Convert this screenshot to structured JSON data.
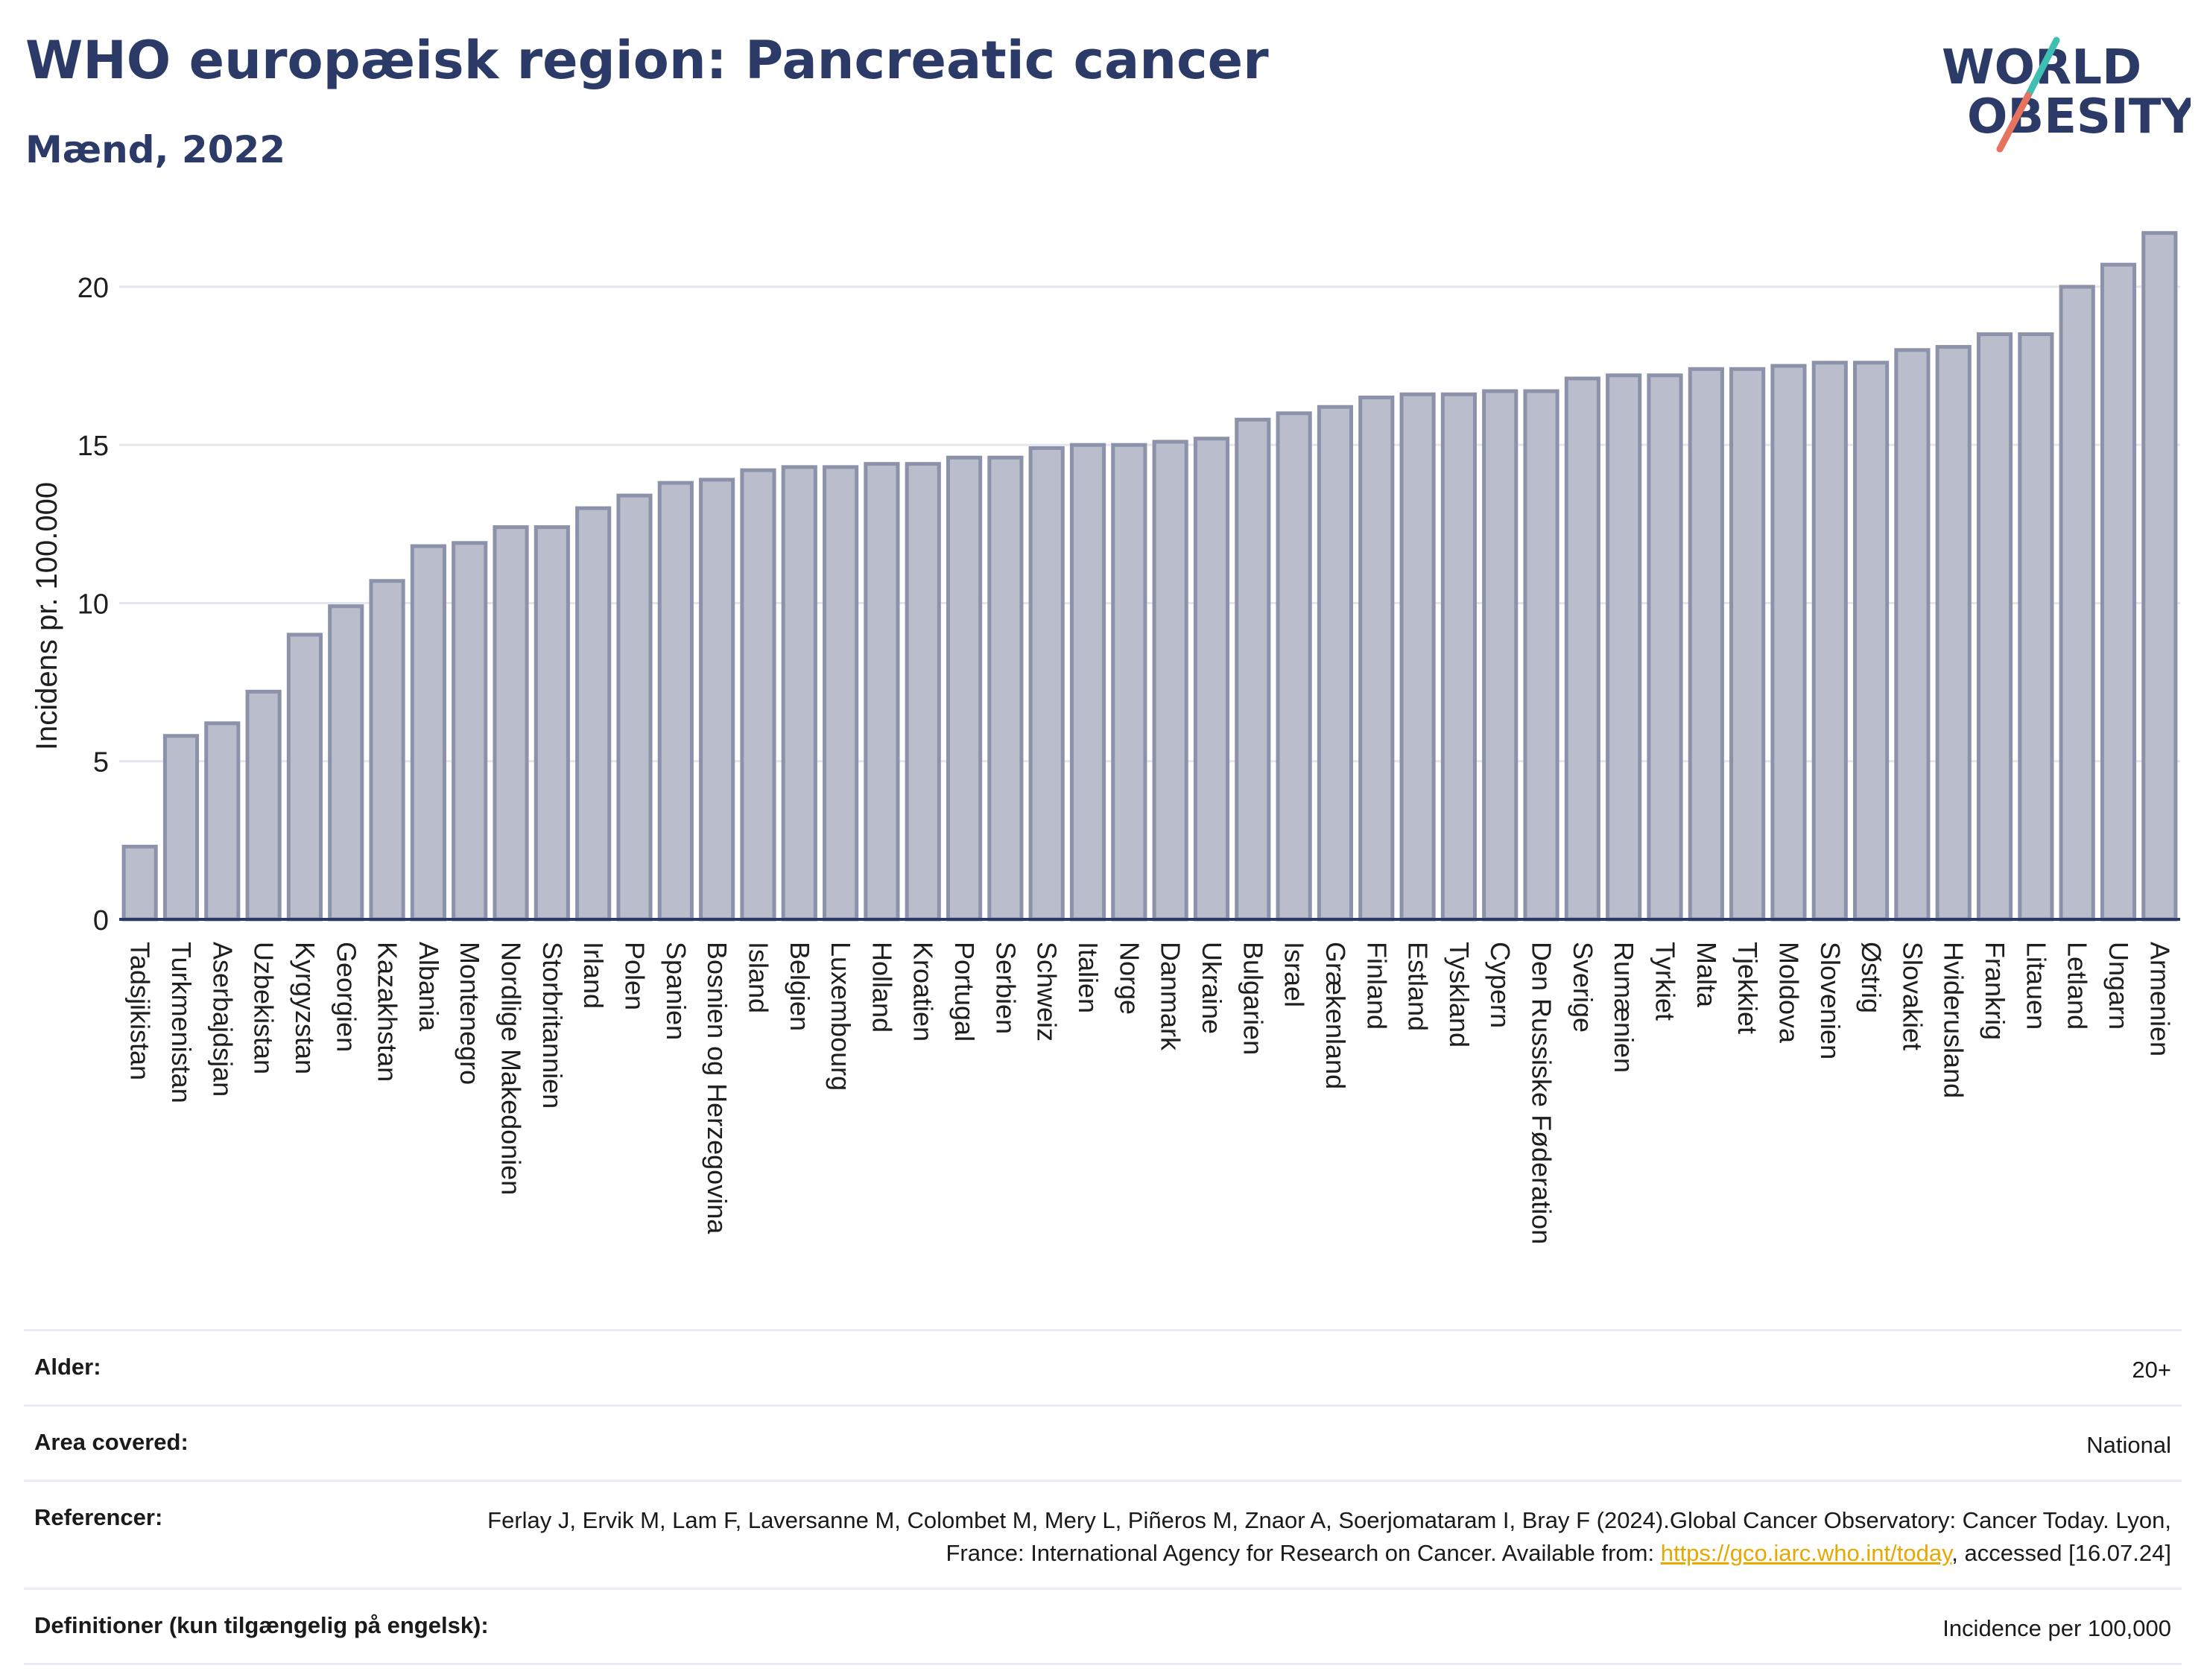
{
  "header": {
    "title": "WHO europæisk region: Pancreatic cancer",
    "subtitle": "Mænd, 2022"
  },
  "logo": {
    "line1": "WORLD",
    "line2": "OBESITY",
    "text_color": "#2b3a67",
    "slash_colors": [
      "#e5735f",
      "#3ebfb1"
    ]
  },
  "colors": {
    "bar_fill": "#b9bdcc",
    "bar_stroke": "#8c92a9",
    "title": "#2b3a67",
    "link": "#e8a800"
  },
  "chart_data": {
    "type": "bar",
    "title": "WHO europæisk region: Pancreatic cancer",
    "subtitle": "Mænd, 2022",
    "xlabel": "",
    "ylabel": "Incidens pr. 100.000",
    "ylim": [
      0,
      22
    ],
    "yticks": [
      0,
      5,
      10,
      15,
      20
    ],
    "grid": true,
    "categories": [
      "Tadsjikistan",
      "Turkmenistan",
      "Aserbajdsjan",
      "Uzbekistan",
      "Kyrgyzstan",
      "Georgien",
      "Kazakhstan",
      "Albania",
      "Montenegro",
      "Nordlige Makedonien",
      "Storbritannien",
      "Irland",
      "Polen",
      "Spanien",
      "Bosnien og Herzegovina",
      "Island",
      "Belgien",
      "Luxembourg",
      "Holland",
      "Kroatien",
      "Portugal",
      "Serbien",
      "Schweiz",
      "Italien",
      "Norge",
      "Danmark",
      "Ukraine",
      "Bulgarien",
      "Israel",
      "Grækenland",
      "Finland",
      "Estland",
      "Tyskland",
      "Cypern",
      "Den Russiske Føderation",
      "Sverige",
      "Rumænien",
      "Tyrkiet",
      "Malta",
      "Tjekkiet",
      "Moldova",
      "Slovenien",
      "Østrig",
      "Slovakiet",
      "Hviderusland",
      "Frankrig",
      "Litauen",
      "Letland",
      "Ungarn",
      "Armenien"
    ],
    "values": [
      2.3,
      5.8,
      6.2,
      7.2,
      9.0,
      9.9,
      10.7,
      11.8,
      11.9,
      12.4,
      12.4,
      13.0,
      13.4,
      13.8,
      13.9,
      14.2,
      14.3,
      14.3,
      14.4,
      14.4,
      14.6,
      14.6,
      14.9,
      15.0,
      15.0,
      15.1,
      15.2,
      15.8,
      16.0,
      16.2,
      16.5,
      16.6,
      16.6,
      16.7,
      16.7,
      17.1,
      17.2,
      17.2,
      17.4,
      17.4,
      17.5,
      17.6,
      17.6,
      18.0,
      18.1,
      18.5,
      18.5,
      20.0,
      20.7,
      21.7
    ]
  },
  "info_table": {
    "age_label": "Alder:",
    "age_value": "20+",
    "area_label": "Area covered:",
    "area_value": "National",
    "ref_label": "Referencer:",
    "ref_text_1": "Ferlay J, Ervik M, Lam F, Laversanne M, Colombet M, Mery L, Piñeros M, Znaor A, Soerjomataram I, Bray F (2024).Global Cancer Observatory: Cancer Today. Lyon, France: International Agency for Research on Cancer. Available from: ",
    "ref_link": "https://gco.iarc.who.int/today",
    "ref_text_2": ", accessed [16.07.24]",
    "def_label": "Definitioner (kun tilgængelig på engelsk):",
    "def_value": "Incidence per 100,000"
  }
}
